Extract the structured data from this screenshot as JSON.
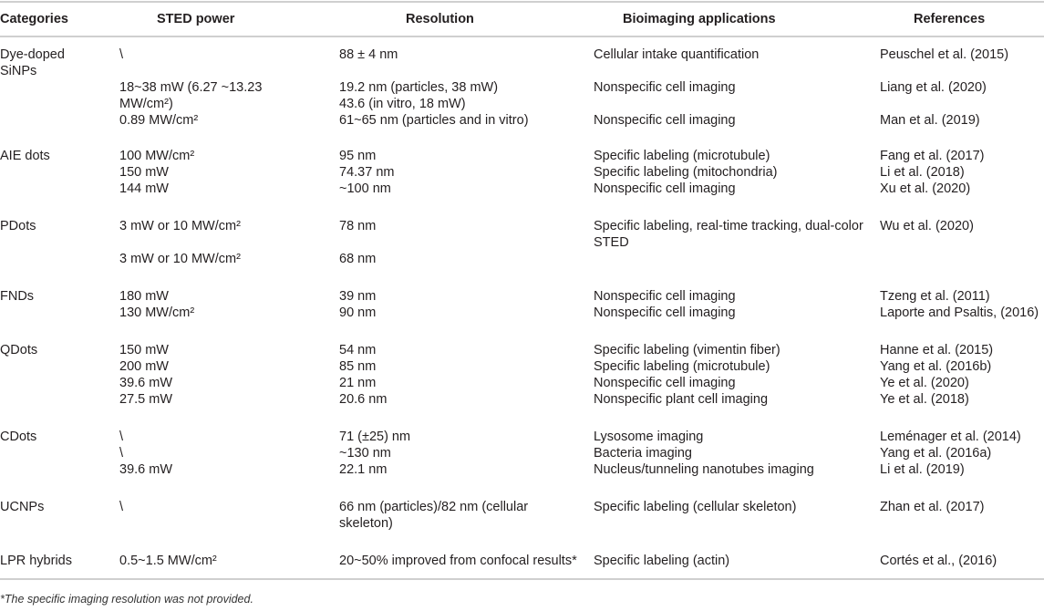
{
  "headers": [
    "Categories",
    "STED power",
    "Resolution",
    "Bioimaging applications",
    "References"
  ],
  "groups": [
    {
      "category": "Dye-doped SiNPs",
      "rows": [
        {
          "power": "\\",
          "resolution": "88 ± 4 nm",
          "application": "Cellular intake quantification",
          "reference": "Peuschel et al. (2015)"
        },
        {
          "power": "18~38 mW (6.27 ~13.23 MW/cm²)",
          "resolution": "19.2 nm (particles, 38 mW)\n43.6 (in vitro, 18 mW)",
          "application": "Nonspecific cell imaging",
          "reference": "Liang et al. (2020)"
        },
        {
          "power": "0.89 MW/cm²",
          "resolution": "61~65 nm (particles and in vitro)",
          "application": "Nonspecific cell imaging",
          "reference": "Man et al. (2019)"
        }
      ]
    },
    {
      "category": "AIE dots",
      "rows": [
        {
          "power": "100 MW/cm²",
          "resolution": "95 nm",
          "application": "Specific labeling (microtubule)",
          "reference": "Fang et al. (2017)"
        },
        {
          "power": "150 mW",
          "resolution": "74.37 nm",
          "application": "Specific labeling (mitochondria)",
          "reference": "Li et al. (2018)"
        },
        {
          "power": "144 mW",
          "resolution": "~100 nm",
          "application": "Nonspecific cell imaging",
          "reference": "Xu et al. (2020)"
        }
      ]
    },
    {
      "category": "PDots",
      "rows": [
        {
          "power": "3 mW or 10 MW/cm²",
          "resolution": "78 nm",
          "application": "Specific labeling, real-time tracking, dual-color STED",
          "reference": "Wu et al. (2020)"
        },
        {
          "power": "3 mW or 10 MW/cm²",
          "resolution": "68 nm",
          "application": "",
          "reference": ""
        }
      ]
    },
    {
      "category": "FNDs",
      "rows": [
        {
          "power": "180 mW",
          "resolution": "39 nm",
          "application": "Nonspecific cell imaging",
          "reference": "Tzeng et al. (2011)"
        },
        {
          "power": "130 MW/cm²",
          "resolution": "90 nm",
          "application": "Nonspecific cell imaging",
          "reference": "Laporte and Psaltis, (2016)"
        }
      ]
    },
    {
      "category": "QDots",
      "rows": [
        {
          "power": "150 mW",
          "resolution": "54 nm",
          "application": "Specific labeling (vimentin fiber)",
          "reference": "Hanne et al. (2015)"
        },
        {
          "power": "200 mW",
          "resolution": "85 nm",
          "application": "Specific labeling (microtubule)",
          "reference": "Yang et al. (2016b)"
        },
        {
          "power": "39.6 mW",
          "resolution": "21 nm",
          "application": "Nonspecific cell imaging",
          "reference": "Ye et al. (2020)"
        },
        {
          "power": "27.5 mW",
          "resolution": "20.6 nm",
          "application": "Nonspecific plant cell imaging",
          "reference": "Ye et al. (2018)"
        }
      ]
    },
    {
      "category": "CDots",
      "rows": [
        {
          "power": "\\",
          "resolution": "71 (±25) nm",
          "application": "Lysosome imaging",
          "reference": "Leménager et al. (2014)"
        },
        {
          "power": "\\",
          "resolution": "~130 nm",
          "application": "Bacteria imaging",
          "reference": "Yang et al. (2016a)"
        },
        {
          "power": "39.6 mW",
          "resolution": "22.1 nm",
          "application": "Nucleus/tunneling nanotubes imaging",
          "reference": "Li et al. (2019)"
        }
      ]
    },
    {
      "category": "UCNPs",
      "rows": [
        {
          "power": "\\",
          "resolution": "66 nm (particles)/82 nm (cellular skeleton)",
          "application": "Specific labeling (cellular skeleton)",
          "reference": "Zhan et al. (2017)"
        }
      ]
    },
    {
      "category": "LPR hybrids",
      "rows": [
        {
          "power": "0.5~1.5 MW/cm²",
          "resolution": "20~50% improved from confocal results*",
          "application": "Specific labeling (actin)",
          "reference": "Cortés et al., (2016)"
        }
      ]
    }
  ],
  "footnote": "*The specific imaging resolution was not provided."
}
